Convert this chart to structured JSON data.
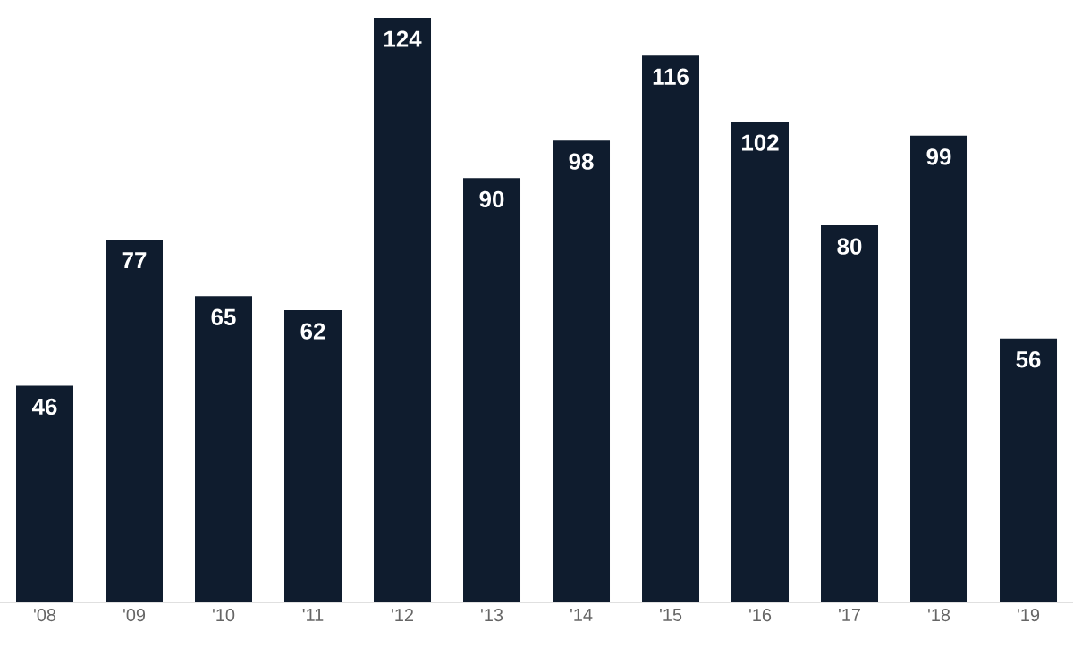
{
  "chart_data": {
    "type": "bar",
    "categories": [
      "'08",
      "'09",
      "'10",
      "'11",
      "'12",
      "'13",
      "'14",
      "'15",
      "'16",
      "'17",
      "'18",
      "'19"
    ],
    "values": [
      46,
      77,
      65,
      62,
      124,
      90,
      98,
      116,
      102,
      80,
      99,
      56
    ],
    "color": "#0f1c2e",
    "data_labels": true
  }
}
